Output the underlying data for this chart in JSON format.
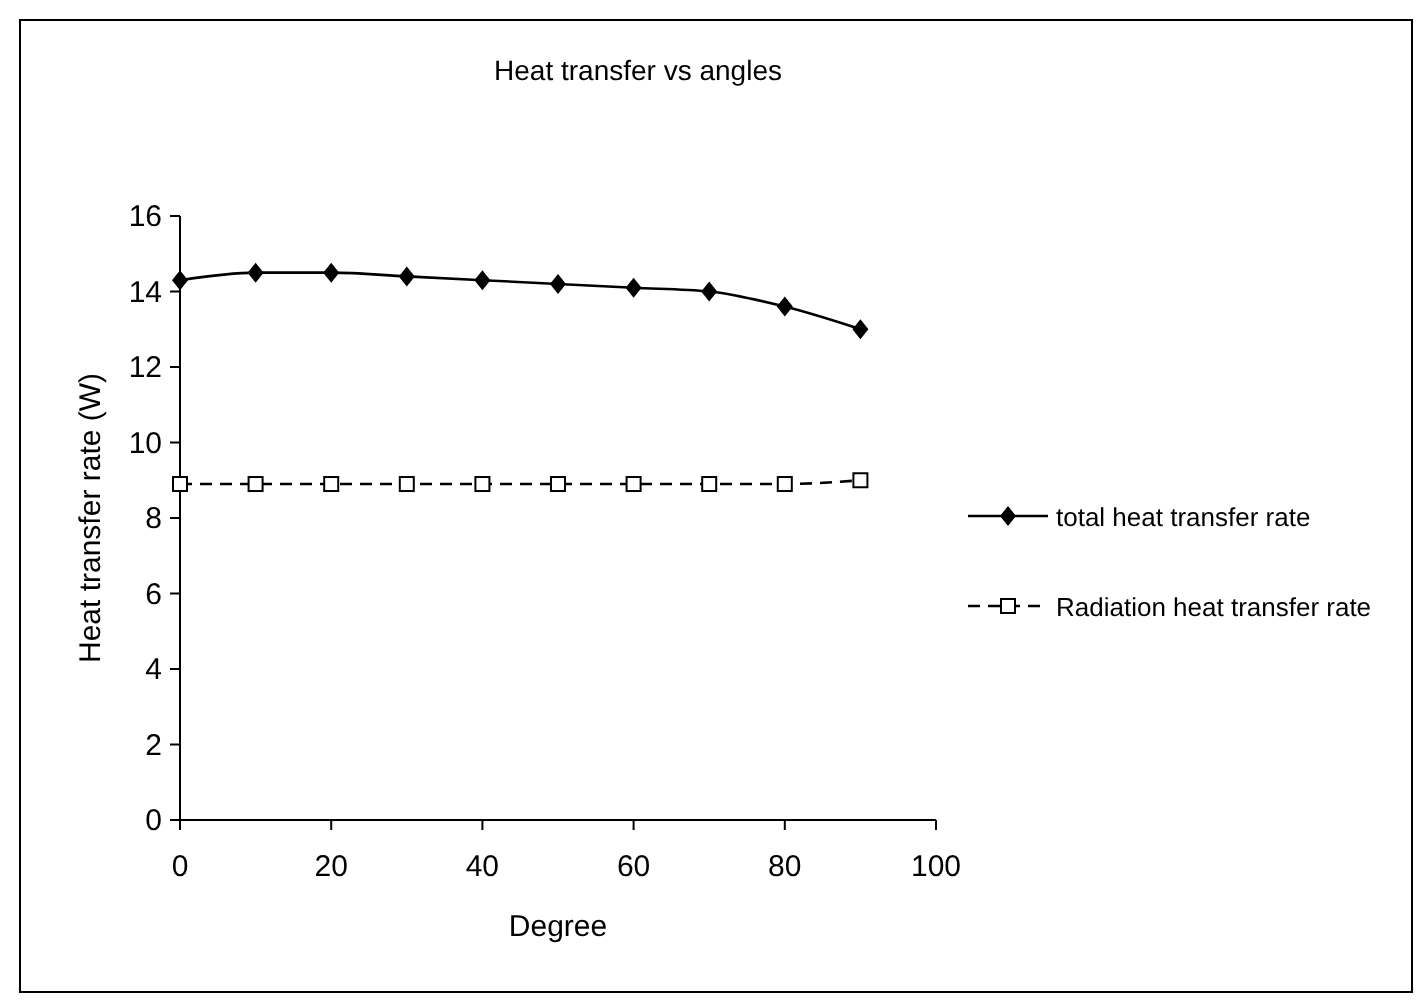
{
  "chart_data": {
    "type": "line",
    "title": "Heat transfer vs angles",
    "xlabel": "Degree",
    "ylabel": "Heat transfer rate (W)",
    "x": [
      0,
      10,
      20,
      30,
      40,
      50,
      60,
      70,
      80,
      90
    ],
    "series": [
      {
        "name": "total heat transfer rate",
        "color": "#000000",
        "values": [
          14.3,
          14.5,
          14.5,
          14.4,
          14.3,
          14.2,
          14.1,
          14.0,
          13.6,
          13.0
        ],
        "marker": "diamond",
        "line_style": "solid"
      },
      {
        "name": "Radiation heat transfer rate",
        "color": "#000000",
        "values": [
          8.9,
          8.9,
          8.9,
          8.9,
          8.9,
          8.9,
          8.9,
          8.9,
          8.9,
          9.0
        ],
        "marker": "square",
        "line_style": "dashed"
      }
    ],
    "xlim": [
      0,
      100
    ],
    "xticks": [
      0,
      20,
      40,
      60,
      80,
      100
    ],
    "ylim": [
      0,
      16
    ],
    "yticks": [
      0,
      2,
      4,
      6,
      8,
      10,
      12,
      14,
      16
    ],
    "grid": false,
    "legend": "right"
  }
}
